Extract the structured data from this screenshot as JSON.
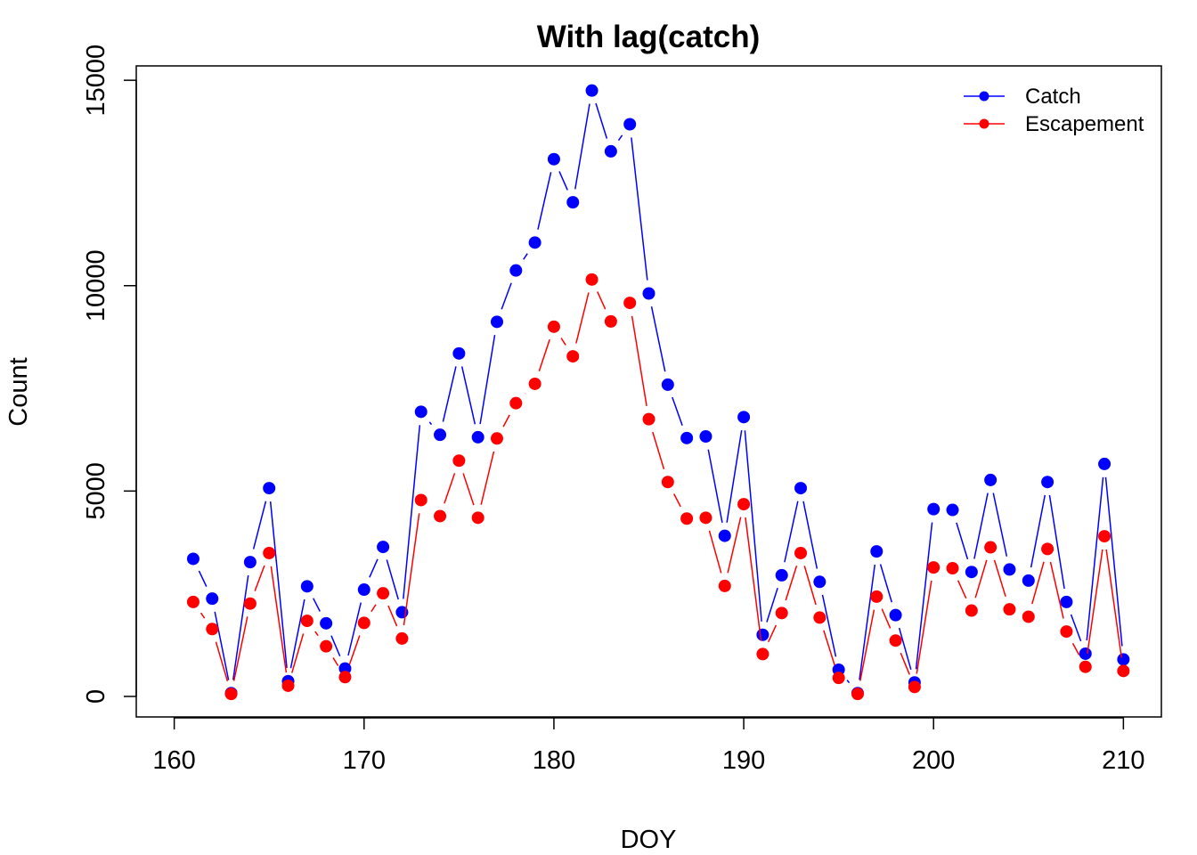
{
  "chart_data": {
    "type": "line",
    "title": "With lag(catch)",
    "xlabel": "DOY",
    "ylabel": "Count",
    "xlim": [
      158,
      212
    ],
    "ylim": [
      -500,
      15350
    ],
    "xticks": [
      160,
      170,
      180,
      190,
      200,
      210
    ],
    "yticks": [
      0,
      5000,
      10000,
      15000
    ],
    "grid": false,
    "legend_position": "top-right",
    "x": [
      161,
      162,
      163,
      164,
      165,
      166,
      167,
      168,
      169,
      170,
      171,
      172,
      173,
      174,
      175,
      176,
      177,
      178,
      179,
      180,
      181,
      182,
      183,
      184,
      185,
      186,
      187,
      188,
      189,
      190,
      191,
      192,
      193,
      194,
      195,
      196,
      197,
      198,
      199,
      200,
      201,
      202,
      203,
      204,
      205,
      206,
      207,
      208,
      209,
      210
    ],
    "series": [
      {
        "name": "Catch",
        "color": "#0000ff",
        "values": [
          3350,
          2380,
          80,
          3270,
          5070,
          370,
          2680,
          1780,
          680,
          2600,
          3640,
          2050,
          6930,
          6370,
          8350,
          6310,
          9120,
          10370,
          11050,
          13080,
          12030,
          14750,
          13270,
          13930,
          9810,
          7590,
          6290,
          6330,
          3910,
          6800,
          1500,
          2950,
          5070,
          2790,
          650,
          80,
          3530,
          1980,
          340,
          4560,
          4540,
          3030,
          5270,
          3090,
          2820,
          5220,
          2300,
          1040,
          5660,
          900
        ]
      },
      {
        "name": "Escapement",
        "color": "#ff0000",
        "values": [
          2300,
          1640,
          60,
          2260,
          3490,
          260,
          1840,
          1220,
          470,
          1790,
          2510,
          1410,
          4780,
          4390,
          5740,
          4350,
          6280,
          7140,
          7610,
          9000,
          8280,
          10150,
          9130,
          9580,
          6750,
          5220,
          4330,
          4350,
          2690,
          4680,
          1030,
          2030,
          3490,
          1920,
          450,
          60,
          2430,
          1360,
          230,
          3140,
          3120,
          2090,
          3630,
          2120,
          1940,
          3590,
          1580,
          720,
          3900,
          620
        ]
      }
    ]
  }
}
